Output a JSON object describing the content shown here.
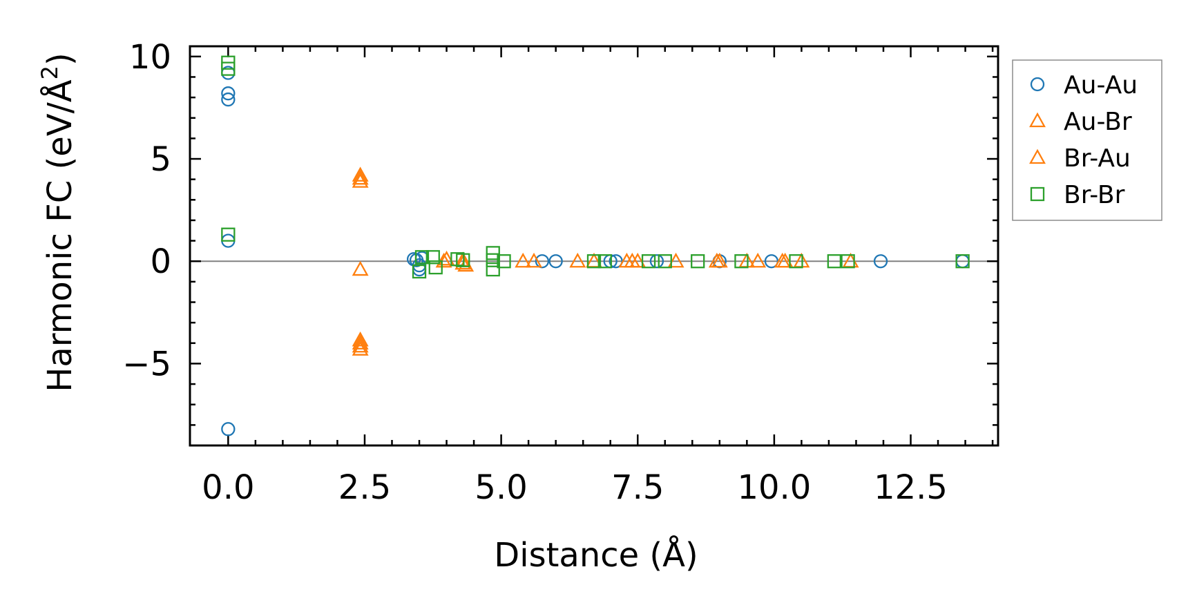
{
  "chart_data": {
    "type": "scatter",
    "xlabel": "Distance (Å)",
    "ylabel_main": "Harmonic FC (eV/Å",
    "ylabel_sup": "2",
    "ylabel_close": ")",
    "xlim": [
      -0.7,
      14.1
    ],
    "ylim": [
      -9.0,
      10.5
    ],
    "xticks": [
      0.0,
      2.5,
      5.0,
      7.5,
      10.0,
      12.5
    ],
    "xtick_labels": [
      "0.0",
      "2.5",
      "5.0",
      "7.5",
      "10.0",
      "12.5"
    ],
    "yticks": [
      -5,
      0,
      5,
      10
    ],
    "ytick_labels": [
      "−5",
      "0",
      "5",
      "10"
    ],
    "legend_position": "outside-right-top",
    "reference_line_y": 0,
    "series": [
      {
        "name": "Au-Au",
        "marker": "circle",
        "color": "#1f77b4",
        "points": [
          [
            0.0,
            9.2
          ],
          [
            0.0,
            8.2
          ],
          [
            0.0,
            7.9
          ],
          [
            0.0,
            1.0
          ],
          [
            0.0,
            -8.2
          ],
          [
            3.4,
            0.1
          ],
          [
            3.45,
            0.05
          ],
          [
            3.5,
            -0.2
          ],
          [
            3.5,
            -0.4
          ],
          [
            3.55,
            0.15
          ],
          [
            5.75,
            0.0
          ],
          [
            6.0,
            0.0
          ],
          [
            7.0,
            0.0
          ],
          [
            7.1,
            0.0
          ],
          [
            7.85,
            0.0
          ],
          [
            9.0,
            0.0
          ],
          [
            9.95,
            0.0
          ],
          [
            11.95,
            0.0
          ],
          [
            13.45,
            0.0
          ]
        ]
      },
      {
        "name": "Au-Br",
        "marker": "triangle",
        "color": "#ff7f0e",
        "points": [
          [
            2.42,
            4.2
          ],
          [
            2.42,
            3.9
          ],
          [
            2.42,
            -0.4
          ],
          [
            2.42,
            -4.0
          ],
          [
            2.42,
            -4.3
          ],
          [
            3.95,
            0.0
          ],
          [
            4.3,
            0.05
          ],
          [
            4.35,
            -0.2
          ],
          [
            5.4,
            0.0
          ],
          [
            5.6,
            0.0
          ],
          [
            6.4,
            0.0
          ],
          [
            7.4,
            0.0
          ],
          [
            8.2,
            0.0
          ],
          [
            9.0,
            0.0
          ],
          [
            9.5,
            0.0
          ],
          [
            10.2,
            0.0
          ],
          [
            10.5,
            0.0
          ],
          [
            11.4,
            0.0
          ]
        ]
      },
      {
        "name": "Br-Au",
        "marker": "triangle",
        "color": "#ff7f0e",
        "points": [
          [
            2.42,
            4.05
          ],
          [
            2.42,
            -3.85
          ],
          [
            2.42,
            -4.15
          ],
          [
            4.0,
            0.1
          ],
          [
            4.3,
            -0.1
          ],
          [
            6.7,
            0.0
          ],
          [
            7.3,
            0.0
          ],
          [
            7.5,
            0.0
          ],
          [
            8.95,
            0.0
          ],
          [
            9.7,
            0.0
          ],
          [
            10.15,
            0.0
          ]
        ]
      },
      {
        "name": "Br-Br",
        "marker": "square",
        "color": "#2ca02c",
        "points": [
          [
            0.0,
            9.7
          ],
          [
            0.0,
            9.4
          ],
          [
            0.0,
            1.3
          ],
          [
            3.5,
            -0.5
          ],
          [
            3.55,
            0.2
          ],
          [
            3.75,
            0.2
          ],
          [
            3.8,
            -0.3
          ],
          [
            4.2,
            0.1
          ],
          [
            4.3,
            0.05
          ],
          [
            4.85,
            0.4
          ],
          [
            4.85,
            0.05
          ],
          [
            4.85,
            -0.4
          ],
          [
            5.05,
            0.0
          ],
          [
            6.7,
            0.0
          ],
          [
            6.9,
            0.0
          ],
          [
            7.7,
            0.0
          ],
          [
            8.0,
            0.0
          ],
          [
            8.6,
            0.0
          ],
          [
            9.4,
            0.0
          ],
          [
            10.4,
            0.0
          ],
          [
            11.1,
            0.0
          ],
          [
            11.35,
            0.0
          ],
          [
            13.45,
            0.0
          ]
        ]
      }
    ]
  }
}
